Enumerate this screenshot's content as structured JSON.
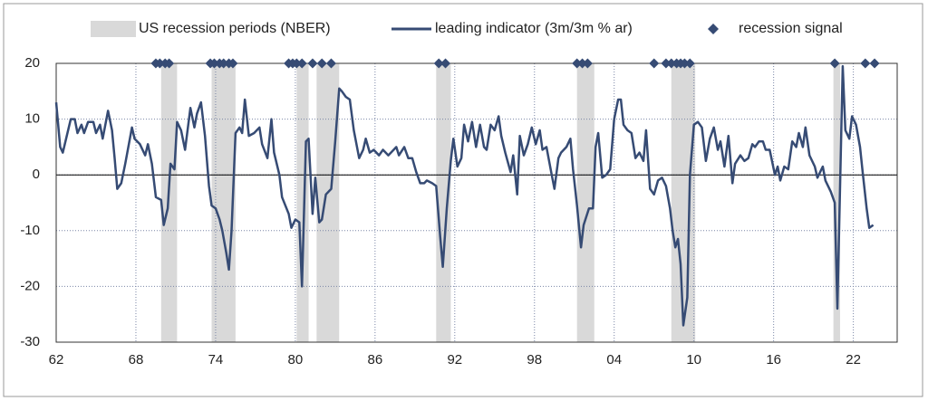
{
  "chart_data": {
    "type": "line",
    "xlim": [
      1962.0,
      2025.3
    ],
    "xticks": [
      {
        "value": 1962,
        "label": "62"
      },
      {
        "value": 1968,
        "label": "68"
      },
      {
        "value": 1974,
        "label": "74"
      },
      {
        "value": 1980,
        "label": "80"
      },
      {
        "value": 1986,
        "label": "86"
      },
      {
        "value": 1992,
        "label": "92"
      },
      {
        "value": 1998,
        "label": "98"
      },
      {
        "value": 2004,
        "label": "04"
      },
      {
        "value": 2010,
        "label": "10"
      },
      {
        "value": 2016,
        "label": "16"
      },
      {
        "value": 2022,
        "label": "22"
      }
    ],
    "ylim": [
      -30,
      20
    ],
    "yticks": [
      -30,
      -20,
      -10,
      0,
      10,
      20
    ],
    "grid": true,
    "recessions": {
      "name": "US recession periods (NBER)",
      "color": "#d9d9d9",
      "periods": [
        [
          1969.9,
          1971.1
        ],
        [
          1973.7,
          1975.5
        ],
        [
          1980.1,
          1981.0
        ],
        [
          1981.6,
          1983.3
        ],
        [
          1990.6,
          1991.7
        ],
        [
          2001.2,
          2002.5
        ],
        [
          2008.3,
          2010.1
        ],
        [
          2020.5,
          2021.0
        ]
      ]
    },
    "series": [
      {
        "name": "leading indicator (3m/3m % ar)",
        "color": "#364b74",
        "x": [
          1962.0,
          1962.3,
          1962.5,
          1963.1,
          1963.4,
          1963.6,
          1963.9,
          1964.1,
          1964.4,
          1964.8,
          1965.0,
          1965.3,
          1965.5,
          1965.9,
          1966.2,
          1966.4,
          1966.6,
          1966.9,
          1967.2,
          1967.7,
          1967.9,
          1968.3,
          1968.7,
          1968.9,
          1969.2,
          1969.5,
          1969.9,
          1970.1,
          1970.4,
          1970.6,
          1970.9,
          1971.1,
          1971.4,
          1971.7,
          1972.1,
          1972.4,
          1972.6,
          1972.9,
          1973.2,
          1973.5,
          1973.7,
          1974.0,
          1974.3,
          1974.5,
          1974.8,
          1975.0,
          1975.2,
          1975.5,
          1975.8,
          1976.0,
          1976.2,
          1976.5,
          1976.9,
          1977.3,
          1977.5,
          1977.9,
          1978.2,
          1978.4,
          1978.8,
          1979.0,
          1979.5,
          1979.7,
          1980.0,
          1980.3,
          1980.5,
          1980.8,
          1981.0,
          1981.3,
          1981.5,
          1981.8,
          1982.0,
          1982.3,
          1982.7,
          1983.0,
          1983.3,
          1983.5,
          1983.8,
          1984.1,
          1984.4,
          1984.8,
          1985.1,
          1985.3,
          1985.6,
          1985.9,
          1986.3,
          1986.6,
          1987.0,
          1987.2,
          1987.6,
          1987.8,
          1988.2,
          1988.5,
          1988.8,
          1989.1,
          1989.4,
          1989.7,
          1989.9,
          1990.3,
          1990.6,
          1990.9,
          1991.1,
          1991.4,
          1991.7,
          1991.9,
          1992.2,
          1992.5,
          1992.7,
          1993.0,
          1993.3,
          1993.6,
          1993.9,
          1994.2,
          1994.4,
          1994.7,
          1995.0,
          1995.3,
          1995.5,
          1995.8,
          1996.2,
          1996.4,
          1996.7,
          1996.9,
          1997.2,
          1997.5,
          1997.8,
          1998.1,
          1998.4,
          1998.6,
          1998.9,
          1999.3,
          1999.5,
          1999.8,
          2000.0,
          2000.4,
          2000.7,
          2000.9,
          2001.2,
          2001.5,
          2001.7,
          2002.1,
          2002.4,
          2002.6,
          2002.8,
          2003.1,
          2003.4,
          2003.7,
          2004.0,
          2004.3,
          2004.5,
          2004.7,
          2005.0,
          2005.3,
          2005.6,
          2005.9,
          2006.2,
          2006.4,
          2006.7,
          2007.0,
          2007.3,
          2007.6,
          2007.9,
          2008.2,
          2008.4,
          2008.6,
          2008.8,
          2009.0,
          2009.2,
          2009.5,
          2009.7,
          2010.0,
          2010.3,
          2010.6,
          2010.9,
          2011.2,
          2011.5,
          2011.8,
          2012.0,
          2012.3,
          2012.6,
          2012.9,
          2013.1,
          2013.5,
          2013.8,
          2014.1,
          2014.4,
          2014.6,
          2014.9,
          2015.2,
          2015.4,
          2015.7,
          2016.1,
          2016.3,
          2016.5,
          2016.8,
          2017.1,
          2017.4,
          2017.7,
          2017.9,
          2018.2,
          2018.4,
          2018.7,
          2019.1,
          2019.3,
          2019.7,
          2019.9,
          2020.3,
          2020.6,
          2020.8,
          2021.2,
          2021.4,
          2021.7,
          2021.9,
          2022.2,
          2022.5,
          2022.7,
          2023.0,
          2023.2,
          2023.5
        ],
        "values": [
          13,
          5,
          4,
          10,
          10,
          7.5,
          9,
          7.5,
          9.5,
          9.5,
          7.5,
          9,
          6.5,
          11.5,
          8,
          3,
          -2.5,
          -1.5,
          2,
          8.5,
          6.5,
          5.5,
          3.5,
          5.5,
          2,
          -4,
          -4.5,
          -9,
          -6,
          2,
          1,
          9.5,
          8,
          4.5,
          12,
          8.5,
          11,
          13,
          7,
          -2,
          -5.5,
          -6,
          -8,
          -10,
          -14,
          -17,
          -10,
          7.5,
          8.5,
          7.5,
          13.5,
          7,
          7.5,
          8.5,
          5.5,
          3,
          10,
          4,
          0,
          -4,
          -7,
          -9.5,
          -8,
          -8.5,
          -20,
          6,
          6.5,
          -7,
          -0.5,
          -8.5,
          -8,
          -3.5,
          -2.5,
          6,
          15.5,
          15,
          14,
          13.5,
          8,
          3,
          4.5,
          6.5,
          4,
          4.5,
          3.5,
          4.5,
          3.5,
          4,
          5,
          3.5,
          5,
          3,
          3,
          0.5,
          -1.5,
          -1.5,
          -1,
          -1.5,
          -2,
          -11,
          -16.5,
          -6,
          2.5,
          6.5,
          1.5,
          3,
          9,
          6,
          9.5,
          5,
          9,
          5,
          4.5,
          9,
          8,
          10.5,
          7,
          4,
          0.5,
          3.5,
          -3.5,
          7,
          3.5,
          5.5,
          8.5,
          5.5,
          8,
          4.5,
          5,
          0,
          -2.5,
          3,
          4,
          5,
          6.5,
          1,
          -5.5,
          -13,
          -9,
          -6,
          -6,
          5,
          7.5,
          -0.5,
          0,
          1,
          10,
          13.5,
          13.5,
          9,
          8,
          7.5,
          3,
          4,
          2.5,
          8,
          -2.5,
          -3.5,
          -1,
          -0.5,
          -2,
          -6,
          -10,
          -13,
          -11.5,
          -16,
          -27,
          -22,
          0,
          9,
          9.5,
          8.5,
          2.5,
          6.5,
          8.5,
          4.5,
          6,
          1.5,
          7,
          -1.5,
          2,
          3.5,
          2.5,
          3,
          5.5,
          5,
          6,
          6,
          4.5,
          4.5,
          0,
          1.5,
          -1,
          1.5,
          1,
          6,
          5,
          7.5,
          5,
          8.5,
          3.5,
          1.5,
          -0.5,
          1.5,
          -1,
          -3,
          -5,
          -24,
          19.5,
          8,
          6.5,
          10.5,
          9,
          5,
          0.5,
          -6,
          -9.5,
          -9
        ]
      }
    ],
    "signals": {
      "name": "recession signal",
      "color": "#364b74",
      "x": [
        1969.5,
        1969.8,
        1970.2,
        1970.5,
        1973.6,
        1973.9,
        1974.3,
        1974.6,
        1975.0,
        1975.3,
        1979.5,
        1979.8,
        1980.1,
        1980.5,
        1981.3,
        1982.0,
        1982.7,
        1990.8,
        1991.3,
        2001.2,
        2001.6,
        2002.0,
        2007.0,
        2007.9,
        2008.3,
        2008.7,
        2009.0,
        2009.3,
        2009.7,
        2020.6,
        2022.9,
        2023.6
      ],
      "values": [
        20,
        20,
        20,
        20,
        20,
        20,
        20,
        20,
        20,
        20,
        20,
        20,
        20,
        20,
        20,
        20,
        20,
        20,
        20,
        20,
        20,
        20,
        20,
        20,
        20,
        20,
        20,
        20,
        20,
        20,
        20,
        20
      ]
    }
  }
}
